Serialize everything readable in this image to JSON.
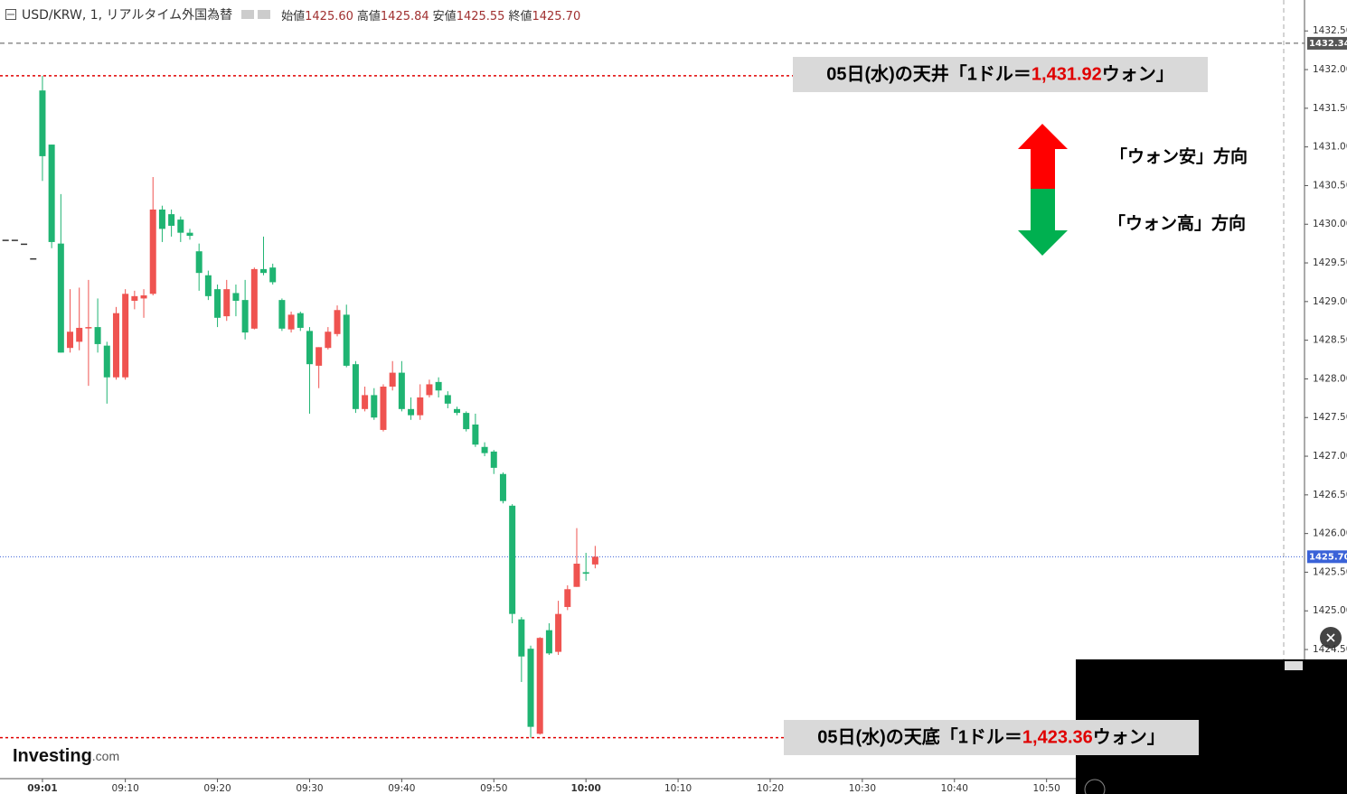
{
  "header": {
    "symbol": "USD/KRW, 1, リアルタイム外国為替",
    "ohlc": [
      {
        "label": "始値",
        "value": "1425.60"
      },
      {
        "label": "高値",
        "value": "1425.84"
      },
      {
        "label": "安値",
        "value": "1425.55"
      },
      {
        "label": "終値",
        "value": "1425.70"
      }
    ]
  },
  "chart_data": {
    "type": "candlestick",
    "x": [
      "08:57",
      "08:58",
      "08:59",
      "09:00",
      "09:01",
      "09:02",
      "09:03",
      "09:04",
      "09:05",
      "09:06",
      "09:07",
      "09:08",
      "09:09",
      "09:10",
      "09:11",
      "09:12",
      "09:13",
      "09:14",
      "09:15",
      "09:16",
      "09:17",
      "09:18",
      "09:19",
      "09:20",
      "09:21",
      "09:22",
      "09:23",
      "09:24",
      "09:25",
      "09:26",
      "09:27",
      "09:28",
      "09:29",
      "09:30",
      "09:31",
      "09:32",
      "09:33",
      "09:34",
      "09:35",
      "09:36",
      "09:37",
      "09:38",
      "09:39",
      "09:40",
      "09:41",
      "09:42",
      "09:43",
      "09:44",
      "09:45",
      "09:46",
      "09:47",
      "09:48",
      "09:49",
      "09:50",
      "09:51",
      "09:52",
      "09:53",
      "09:54",
      "09:55",
      "09:56",
      "09:57",
      "09:58",
      "09:59",
      "10:00",
      "10:01"
    ],
    "open": [
      1429.8,
      1429.8,
      1429.75,
      1429.56,
      1431.73,
      1431.03,
      1429.75,
      1428.4,
      1428.48,
      1428.66,
      1428.67,
      1428.43,
      1428.02,
      1428.02,
      1429.01,
      1429.04,
      1429.1,
      1430.19,
      1430.13,
      1430.06,
      1429.89,
      1429.65,
      1429.34,
      1429.16,
      1428.81,
      1429.11,
      1429.02,
      1428.65,
      1429.42,
      1429.44,
      1429.02,
      1428.64,
      1428.85,
      1428.62,
      1428.17,
      1428.4,
      1428.58,
      1428.83,
      1428.19,
      1427.61,
      1427.79,
      1427.34,
      1427.9,
      1428.08,
      1427.61,
      1427.53,
      1427.79,
      1427.96,
      1427.79,
      1427.61,
      1427.56,
      1427.41,
      1427.12,
      1427.06,
      1426.77,
      1426.36,
      1424.89,
      1424.51,
      1423.41,
      1424.75,
      1424.47,
      1425.05,
      1425.31,
      1425.5,
      1425.6
    ],
    "high": [
      1429.8,
      1429.8,
      1429.75,
      1429.56,
      1431.92,
      1431.03,
      1430.39,
      1429.16,
      1429.18,
      1429.28,
      1429.04,
      1428.48,
      1428.93,
      1429.16,
      1429.14,
      1429.16,
      1430.61,
      1430.24,
      1430.19,
      1430.1,
      1429.94,
      1429.75,
      1429.4,
      1429.22,
      1429.28,
      1429.22,
      1429.28,
      1429.44,
      1429.84,
      1429.49,
      1429.04,
      1428.87,
      1428.87,
      1428.67,
      1428.41,
      1428.67,
      1428.95,
      1428.96,
      1428.23,
      1427.9,
      1427.88,
      1427.93,
      1428.23,
      1428.23,
      1427.76,
      1427.93,
      1427.99,
      1428.02,
      1427.84,
      1427.64,
      1427.58,
      1427.55,
      1427.18,
      1427.08,
      1426.79,
      1426.38,
      1424.92,
      1424.55,
      1424.66,
      1424.84,
      1425.13,
      1425.33,
      1426.07,
      1425.75,
      1425.84
    ],
    "low": [
      1429.8,
      1429.8,
      1429.75,
      1429.56,
      1430.56,
      1429.69,
      1428.34,
      1428.34,
      1428.37,
      1427.91,
      1428.34,
      1427.68,
      1427.99,
      1427.99,
      1428.9,
      1428.79,
      1429.08,
      1429.77,
      1429.84,
      1429.77,
      1429.8,
      1429.14,
      1429.02,
      1428.67,
      1428.75,
      1428.81,
      1428.51,
      1428.64,
      1429.34,
      1429.22,
      1428.62,
      1428.6,
      1428.62,
      1427.55,
      1427.88,
      1428.38,
      1428.55,
      1428.15,
      1427.56,
      1427.58,
      1427.47,
      1427.32,
      1427.85,
      1427.58,
      1427.47,
      1427.47,
      1427.76,
      1427.76,
      1427.62,
      1427.53,
      1427.32,
      1427.12,
      1427.0,
      1426.77,
      1426.39,
      1424.84,
      1424.08,
      1423.36,
      1423.4,
      1424.43,
      1424.43,
      1425.01,
      1425.31,
      1425.39,
      1425.55
    ],
    "close": [
      1429.8,
      1429.8,
      1429.75,
      1429.56,
      1430.88,
      1429.77,
      1428.34,
      1428.61,
      1428.66,
      1428.67,
      1428.45,
      1428.02,
      1428.85,
      1429.1,
      1429.07,
      1429.08,
      1430.19,
      1429.94,
      1429.98,
      1429.89,
      1429.85,
      1429.37,
      1429.07,
      1428.79,
      1429.16,
      1429.01,
      1428.6,
      1429.42,
      1429.37,
      1429.25,
      1428.65,
      1428.83,
      1428.66,
      1428.19,
      1428.41,
      1428.61,
      1428.89,
      1428.17,
      1427.61,
      1427.79,
      1427.5,
      1427.9,
      1428.08,
      1427.61,
      1427.53,
      1427.76,
      1427.93,
      1427.85,
      1427.68,
      1427.56,
      1427.35,
      1427.15,
      1427.04,
      1426.85,
      1426.42,
      1424.96,
      1424.41,
      1423.5,
      1424.65,
      1424.45,
      1424.96,
      1425.28,
      1425.61,
      1425.48,
      1425.7
    ],
    "up_color": "#ef5350",
    "down_color": "#1fb472",
    "xlim": [
      "08:56",
      "11:18"
    ],
    "xticks": [
      "09:01",
      "09:10",
      "09:20",
      "09:30",
      "09:40",
      "09:50",
      "10:00",
      "10:10",
      "10:20",
      "10:30",
      "10:40",
      "10:50"
    ],
    "ylim": [
      1422.83,
      1432.9
    ],
    "yticks": [
      {
        "value": 1424.5,
        "label": "1424.50"
      },
      {
        "value": 1425,
        "label": "1425.00"
      },
      {
        "value": 1425.5,
        "label": "1425.50"
      },
      {
        "value": 1426,
        "label": "1426.00"
      },
      {
        "value": 1426.5,
        "label": "1426.50"
      },
      {
        "value": 1427,
        "label": "1427.00"
      },
      {
        "value": 1427.5,
        "label": "1427.50"
      },
      {
        "value": 1428,
        "label": "1428.00"
      },
      {
        "value": 1428.5,
        "label": "1428.50"
      },
      {
        "value": 1429,
        "label": "1429.00"
      },
      {
        "value": 1429.5,
        "label": "1429.50"
      },
      {
        "value": 1430,
        "label": "1430.00"
      },
      {
        "value": 1430.5,
        "label": "1430.50"
      },
      {
        "value": 1431,
        "label": "1431.00"
      },
      {
        "value": 1431.5,
        "label": "1431.50"
      },
      {
        "value": 1432,
        "label": "1432.00"
      },
      {
        "value": 1432.5,
        "label": "1432.50"
      }
    ],
    "grid": false,
    "price_markers": [
      {
        "value": 1432.34,
        "color": "#555555"
      },
      {
        "value": 1425.7,
        "label": "1425.70",
        "color": "#3a62d8"
      }
    ],
    "annotations": [
      {
        "value": 1431.92,
        "prefix": "05日(水)の天井「1ドル＝",
        "value_label": "1,431.92",
        "suffix": "ウォン」",
        "color": "#e00000"
      },
      {
        "value": 1423.36,
        "prefix": "05日(水)の天底「1ドル＝",
        "value_label": "1,423.36",
        "suffix": "ウォン」",
        "color": "#e00000"
      }
    ]
  },
  "direction_legend": [
    {
      "label": "「ウォン安」方向",
      "color": "#ff0000"
    },
    {
      "label": "「ウォン高」方向",
      "color": "#00b050"
    }
  ],
  "logo": {
    "name": "Investing",
    "suffix": ".com"
  }
}
